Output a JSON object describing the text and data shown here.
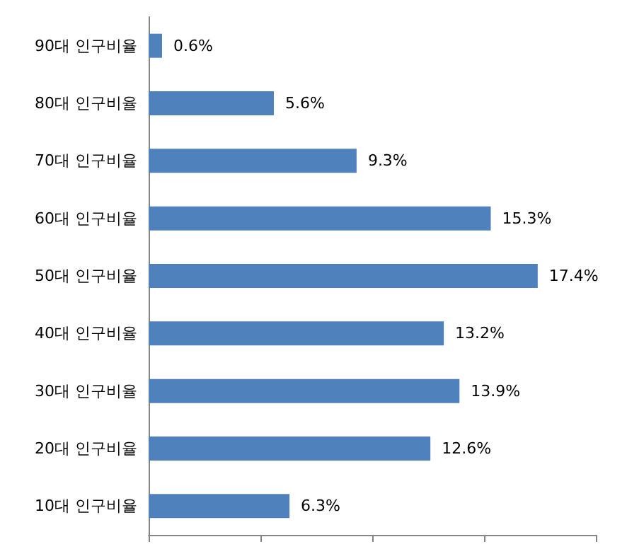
{
  "chart_data": {
    "type": "bar",
    "orientation": "horizontal",
    "categories": [
      "90대 인구비율",
      "80대 인구비율",
      "70대 인구비율",
      "60대 인구비율",
      "50대 인구비율",
      "40대 인구비율",
      "30대 인구비율",
      "20대 인구비율",
      "10대 인구비율"
    ],
    "values": [
      0.6,
      5.6,
      9.3,
      15.3,
      17.4,
      13.2,
      13.9,
      12.6,
      6.3
    ],
    "value_labels": [
      "0.6%",
      "5.6%",
      "9.3%",
      "15.3%",
      "17.4%",
      "13.2%",
      "13.9%",
      "12.6%",
      "6.3%"
    ],
    "color": "#4f81bd",
    "xlim": [
      0,
      20
    ],
    "xticks": [
      {
        "value": 0,
        "label": null
      },
      {
        "value": 5,
        "label": null
      },
      {
        "value": 10,
        "label": null
      },
      {
        "value": 15,
        "label": null
      },
      {
        "value": 20,
        "label": null
      }
    ],
    "tick_labels": "y"
  }
}
